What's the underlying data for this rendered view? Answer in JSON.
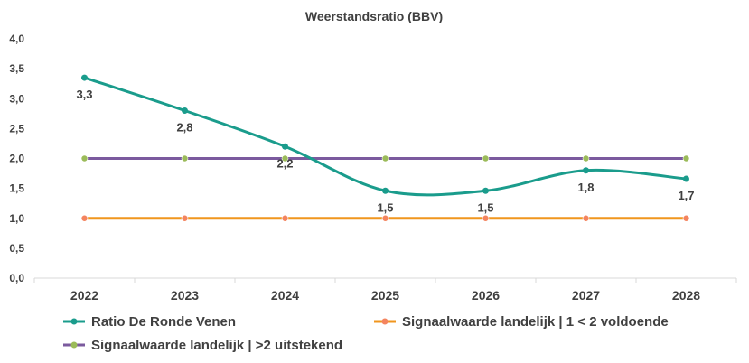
{
  "chart_data": {
    "type": "line",
    "title": "Weerstandsratio (BBV)",
    "categories": [
      "2022",
      "2023",
      "2024",
      "2025",
      "2026",
      "2027",
      "2028"
    ],
    "ylim": [
      0,
      4
    ],
    "yticks": [
      "0,0",
      "0,5",
      "1,0",
      "1,5",
      "2,0",
      "2,5",
      "3,0",
      "3,5",
      "4,0"
    ],
    "grid": false,
    "legend_position": "bottom",
    "series": [
      {
        "name": "Ratio De Ronde Venen",
        "color": "#1a9c8c",
        "values": [
          3.35,
          2.8,
          2.2,
          1.46,
          1.46,
          1.8,
          1.66
        ],
        "data_labels": [
          "3,3",
          "2,8",
          "2,2",
          "1,5",
          "1,5",
          "1,8",
          "1,7"
        ],
        "smooth": true
      },
      {
        "name": "Signaalwaarde landelijk | 1 < 2 voldoende",
        "color": "#f0961e",
        "marker_color": "#f4845f",
        "values": [
          1,
          1,
          1,
          1,
          1,
          1,
          1
        ]
      },
      {
        "name": "Signaalwaarde landelijk | >2 uitstekend",
        "color": "#7b5a9e",
        "marker_color": "#9bbb59",
        "values": [
          2,
          2,
          2,
          2,
          2,
          2,
          2
        ]
      }
    ]
  }
}
